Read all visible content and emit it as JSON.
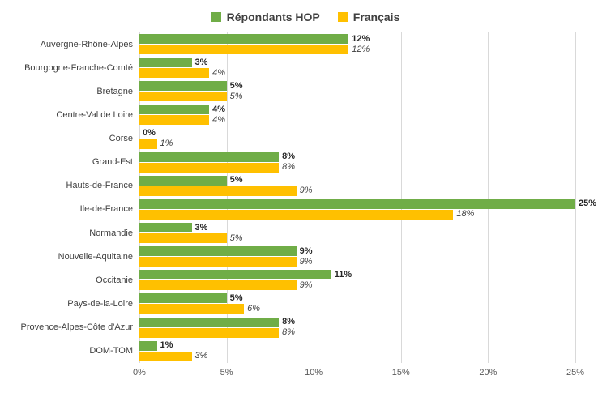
{
  "chart_data": {
    "type": "bar",
    "orientation": "horizontal",
    "title": "",
    "legend_position": "top",
    "grid": true,
    "value_suffix": "%",
    "xlim": [
      0,
      25
    ],
    "x_ticks": [
      "0%",
      "5%",
      "10%",
      "15%",
      "20%",
      "25%"
    ],
    "categories": [
      "Auvergne-Rhône-Alpes",
      "Bourgogne-Franche-Comté",
      "Bretagne",
      "Centre-Val de Loire",
      "Corse",
      "Grand-Est",
      "Hauts-de-France",
      "Ile-de-France",
      "Normandie",
      "Nouvelle-Aquitaine",
      "Occitanie",
      "Pays-de-la-Loire",
      "Provence-Alpes-Côte d'Azur",
      "DOM-TOM"
    ],
    "series": [
      {
        "name": "Répondants HOP",
        "color": "#70AD47",
        "label_style": "bold",
        "values": [
          12,
          3,
          5,
          4,
          0,
          8,
          5,
          25,
          3,
          9,
          11,
          5,
          8,
          1
        ]
      },
      {
        "name": "Français",
        "color": "#FFC000",
        "label_style": "italic",
        "values": [
          12,
          4,
          5,
          4,
          1,
          8,
          9,
          18,
          5,
          9,
          9,
          6,
          8,
          3
        ]
      }
    ]
  }
}
